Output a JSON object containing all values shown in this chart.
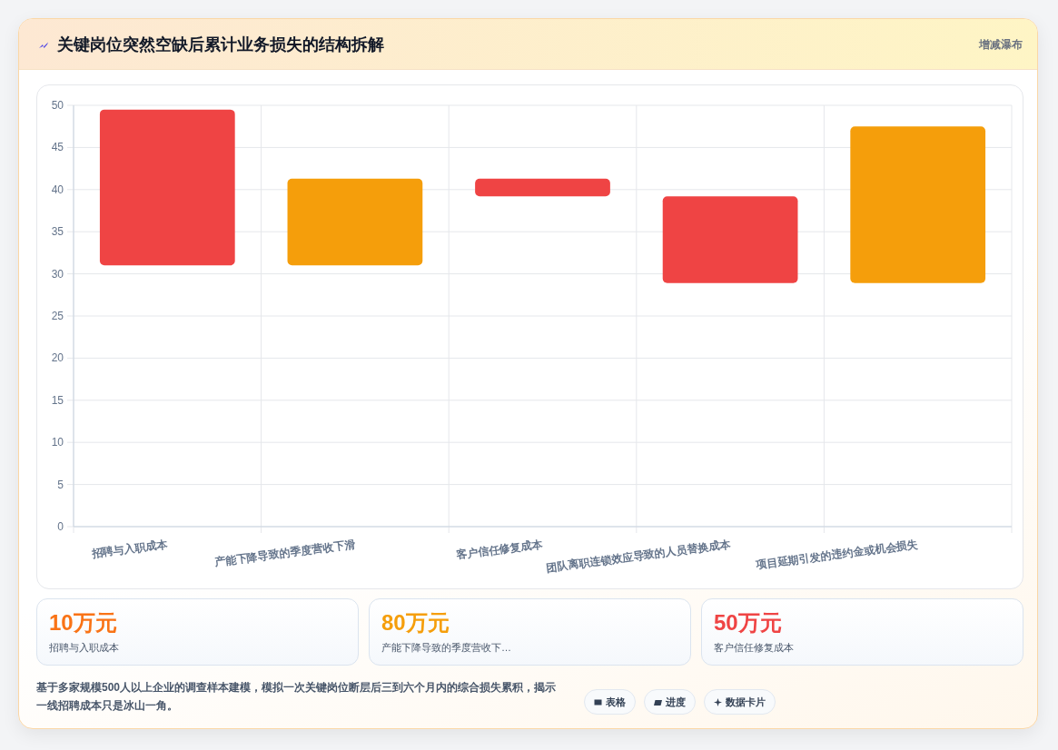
{
  "chart_data": [
    {
      "type": "bar",
      "title": "关键岗位突然空缺后累计业务损失的结构拆解",
      "subtitle": "增减瀑布",
      "categories": [
        "招聘与入职成本",
        "产能下降导致的季度营收下滑",
        "客户信任修复成本",
        "团队离职连锁效应导致的人员替换成本",
        "项目延期引发的违约金或机会损失"
      ],
      "values": [
        18.5,
        10.3,
        2.1,
        10.3,
        18.6
      ],
      "base": [
        31,
        31,
        39.2,
        28.9,
        28.9
      ],
      "colors": [
        "#ef4444",
        "#f59e0b",
        "#ef4444",
        "#ef4444",
        "#f59e0b"
      ],
      "ylim": [
        0,
        50
      ],
      "yticks": [
        0,
        5,
        10,
        15,
        20,
        25,
        30,
        35,
        40,
        45,
        50
      ],
      "grid": true,
      "annotations": [
        "基于多家规模500人以上企业的调查样本建模，模拟一次关键岗位断层后三到六个月内的综合损失累积，揭示一线招聘成本只是冰山一角。"
      ]
    },
    {
      "type": "other",
      "annotations": [
        "10万元",
        "招聘与入职成本",
        "80万元",
        "产能下降导致的季度营收下…",
        "50万元",
        "客户信任修复成本"
      ],
      "colors": [
        "#f97316",
        "#f59e0b",
        "#ef4444"
      ]
    },
    {
      "type": "other",
      "annotations": [
        "表格",
        "进度",
        "数据卡片"
      ]
    }
  ]
}
